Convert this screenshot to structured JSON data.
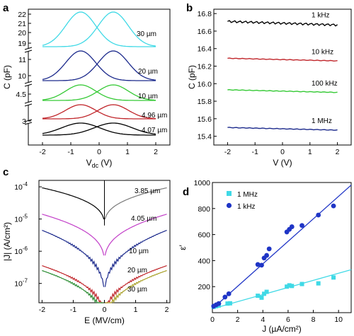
{
  "colors": {
    "cyan": "#3fd9e6",
    "navy": "#1c2a8c",
    "green": "#34c934",
    "red": "#c0252a",
    "black": "#000000",
    "gray": "#7a7a7a",
    "magenta": "#c23ec8",
    "olive": "#a8a028",
    "dkgreen": "#2a8c32",
    "blue": "#1f35c6"
  },
  "chart_data": [
    {
      "panel": "a",
      "type": "line",
      "xlabel": "V",
      "xlabel_sub": "dc",
      "xlabel_unit": " (V)",
      "ylabel": "C (pF)",
      "xlim": [
        -2.5,
        2.5
      ],
      "xticks": [
        "-2",
        "-1",
        "0",
        "1",
        "2"
      ],
      "yticks": [
        "22",
        "21",
        "20",
        "19",
        "11",
        "10",
        "4.5",
        "3"
      ],
      "series": [
        {
          "name": "30 µm",
          "label": "30 µm",
          "color": "cyan",
          "base": 19.5,
          "peak": 22.0
        },
        {
          "name": "20 µm",
          "label": "20 µm",
          "color": "navy",
          "base": 9.7,
          "peak": 11.5
        },
        {
          "name": "10 µm",
          "label": "10 µm",
          "color": "green",
          "base": 4.3,
          "peak": 4.85
        },
        {
          "name": "4.96 µm",
          "label": "4.96 µm",
          "color": "red",
          "base": 3.0,
          "peak": 3.55
        },
        {
          "name": "4.07 µm",
          "label": "4.07 µm",
          "color": "black",
          "base": 2.0,
          "peak": 2.4
        }
      ]
    },
    {
      "panel": "b",
      "type": "line",
      "xlabel": "V (V)",
      "ylabel": "C (pF)",
      "xlim": [
        -2.5,
        2.5
      ],
      "ylim": [
        15.3,
        16.85
      ],
      "xticks": [
        -2,
        -1,
        0,
        1,
        2
      ],
      "yticks": [
        15.4,
        15.6,
        15.8,
        16.0,
        16.2,
        16.4,
        16.6,
        16.8
      ],
      "series": [
        {
          "name": "1 kHz",
          "label": "1 kHz",
          "color": "black",
          "y_start": 16.71,
          "y_end": 16.67
        },
        {
          "name": "10 kHz",
          "label": "10 kHz",
          "color": "red",
          "y_start": 16.29,
          "y_end": 16.26
        },
        {
          "name": "100 kHz",
          "label": "100 kHz",
          "color": "green",
          "y_start": 15.93,
          "y_end": 15.9
        },
        {
          "name": "1 MHz",
          "label": "1 MHz",
          "color": "navy",
          "y_start": 15.5,
          "y_end": 15.47
        }
      ]
    },
    {
      "panel": "c",
      "type": "line",
      "xlabel": "E (MV/cm)",
      "ylabel": "|J| (A/cm²)",
      "xlim": [
        -2.1,
        2.1
      ],
      "ylog": true,
      "ylim_exp": [
        -7.6,
        -3.8
      ],
      "xticks": [
        "-2",
        "-1",
        "0",
        "1",
        "2"
      ],
      "ytick_exps": [
        -7,
        -6,
        -5,
        -4
      ],
      "ytick_labels": [
        "10",
        "10",
        "10",
        "10"
      ],
      "ytick_sups": [
        "-7",
        "-6",
        "-5",
        "-4"
      ],
      "series": [
        {
          "name": "3.85 µm",
          "label": "3.85 µm",
          "color": "black",
          "right_color": "gray",
          "exp_edge": -4.03,
          "exp_center": -5.25
        },
        {
          "name": "4.05 µm",
          "label": "4.05 µm",
          "color": "magenta",
          "exp_edge": -4.85,
          "exp_center": -6.45
        },
        {
          "name": "10 µm",
          "label": "10 µm",
          "color": "navy",
          "exp_edge": -5.35,
          "exp_center": -7.55
        },
        {
          "name": "20 µm",
          "label": "20 µm",
          "color": "red",
          "exp_edge": -6.45,
          "exp_center": -8.3
        },
        {
          "name": "30 µm",
          "label": "30 µm",
          "color": "dkgreen",
          "right_color": "olive",
          "exp_edge": -6.6,
          "exp_center": -8.5
        }
      ]
    },
    {
      "panel": "d",
      "type": "scatter",
      "xlabel": "J (µA/cm²)",
      "ylabel": "ε′",
      "xlim": [
        0,
        11
      ],
      "ylim": [
        0,
        1000
      ],
      "xticks": [
        0,
        2,
        4,
        6,
        8,
        10
      ],
      "yticks": [
        200,
        400,
        600,
        800,
        1000
      ],
      "legend": "top-left",
      "series": [
        {
          "name": "1 MHz",
          "color": "cyan",
          "marker": "square",
          "x": [
            0.1,
            0.3,
            0.5,
            1.2,
            1.4,
            3.6,
            3.9,
            4.1,
            4.3,
            5.9,
            6.1,
            6.3,
            7.1,
            8.4,
            9.6
          ],
          "y": [
            45,
            50,
            55,
            70,
            72,
            130,
            115,
            145,
            160,
            200,
            210,
            205,
            220,
            225,
            270
          ],
          "fit": [
            [
              0,
              30
            ],
            [
              11,
              330
            ]
          ]
        },
        {
          "name": "1 kHz",
          "color": "blue",
          "marker": "circle",
          "x": [
            0.1,
            0.3,
            0.5,
            1.0,
            1.3,
            3.6,
            3.9,
            4.1,
            4.3,
            4.5,
            5.9,
            6.1,
            6.3,
            7.1,
            8.4,
            9.6
          ],
          "y": [
            50,
            60,
            70,
            120,
            145,
            370,
            365,
            420,
            440,
            490,
            620,
            640,
            660,
            670,
            750,
            820
          ],
          "fit": [
            [
              0,
              30
            ],
            [
              11,
              980
            ]
          ]
        }
      ]
    }
  ]
}
